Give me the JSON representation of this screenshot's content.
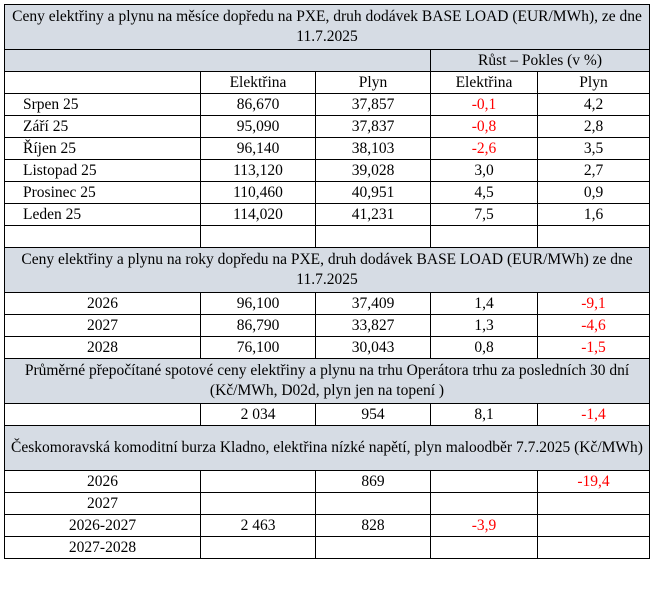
{
  "colors": {
    "header_bg": "#d6dce4",
    "negative": "#ff0000",
    "border": "#000000"
  },
  "section1": {
    "title": "Ceny elektřiny a plynu na měsíce dopředu na PXE, druh dodávek BASE LOAD (EUR/MWh), ze dne 11.7.2025",
    "growth_header": "Růst – Pokles (v %)",
    "col_headers": [
      "Elektřina",
      "Plyn",
      "Elektřina",
      "Plyn"
    ],
    "rows": [
      {
        "label": "Srpen 25",
        "el": "86,670",
        "gas": "37,857",
        "el_ch": "-0,1",
        "gas_ch": "4,2"
      },
      {
        "label": "Září 25",
        "el": "95,090",
        "gas": "37,837",
        "el_ch": "-0,8",
        "gas_ch": "2,8"
      },
      {
        "label": "Říjen 25",
        "el": "96,140",
        "gas": "38,103",
        "el_ch": "-2,6",
        "gas_ch": "3,5"
      },
      {
        "label": "Listopad 25",
        "el": "113,120",
        "gas": "39,028",
        "el_ch": "3,0",
        "gas_ch": "2,7"
      },
      {
        "label": "Prosinec 25",
        "el": "110,460",
        "gas": "40,951",
        "el_ch": "4,5",
        "gas_ch": "0,9"
      },
      {
        "label": "Leden 25",
        "el": "114,020",
        "gas": "41,231",
        "el_ch": "7,5",
        "gas_ch": "1,6"
      }
    ]
  },
  "section2": {
    "title": "Ceny elektřiny a plynu na roky dopředu na PXE, druh dodávek BASE LOAD (EUR/MWh) ze dne 11.7.2025",
    "rows": [
      {
        "label": "2026",
        "el": "96,100",
        "gas": "37,409",
        "el_ch": "1,4",
        "gas_ch": "-9,1"
      },
      {
        "label": "2027",
        "el": "86,790",
        "gas": "33,827",
        "el_ch": "1,3",
        "gas_ch": "-4,6"
      },
      {
        "label": "2028",
        "el": "76,100",
        "gas": "30,043",
        "el_ch": "0,8",
        "gas_ch": "-1,5"
      }
    ]
  },
  "section3": {
    "title": "Průměrné přepočítané spotové ceny elektřiny a plynu na trhu Operátora trhu za posledních 30 dní (Kč/MWh, D02d, plyn jen na topení )",
    "row": {
      "label": "",
      "el": "2 034",
      "gas": "954",
      "el_ch": "8,1",
      "gas_ch": "-1,4"
    }
  },
  "section4": {
    "title": "Českomoravská komoditní burza Kladno, elektřina nízké napětí, plyn maloodběr 7.7.2025 (Kč/MWh)",
    "rows": [
      {
        "label": "2026",
        "el": "",
        "gas": "869",
        "el_ch": "",
        "gas_ch": "-19,4"
      },
      {
        "label": "2027",
        "el": "",
        "gas": "",
        "el_ch": "",
        "gas_ch": ""
      },
      {
        "label": "2026-2027",
        "el": "2 463",
        "gas": "828",
        "el_ch": "-3,9",
        "gas_ch": ""
      },
      {
        "label": "2027-2028",
        "el": "",
        "gas": "",
        "el_ch": "",
        "gas_ch": ""
      }
    ]
  }
}
